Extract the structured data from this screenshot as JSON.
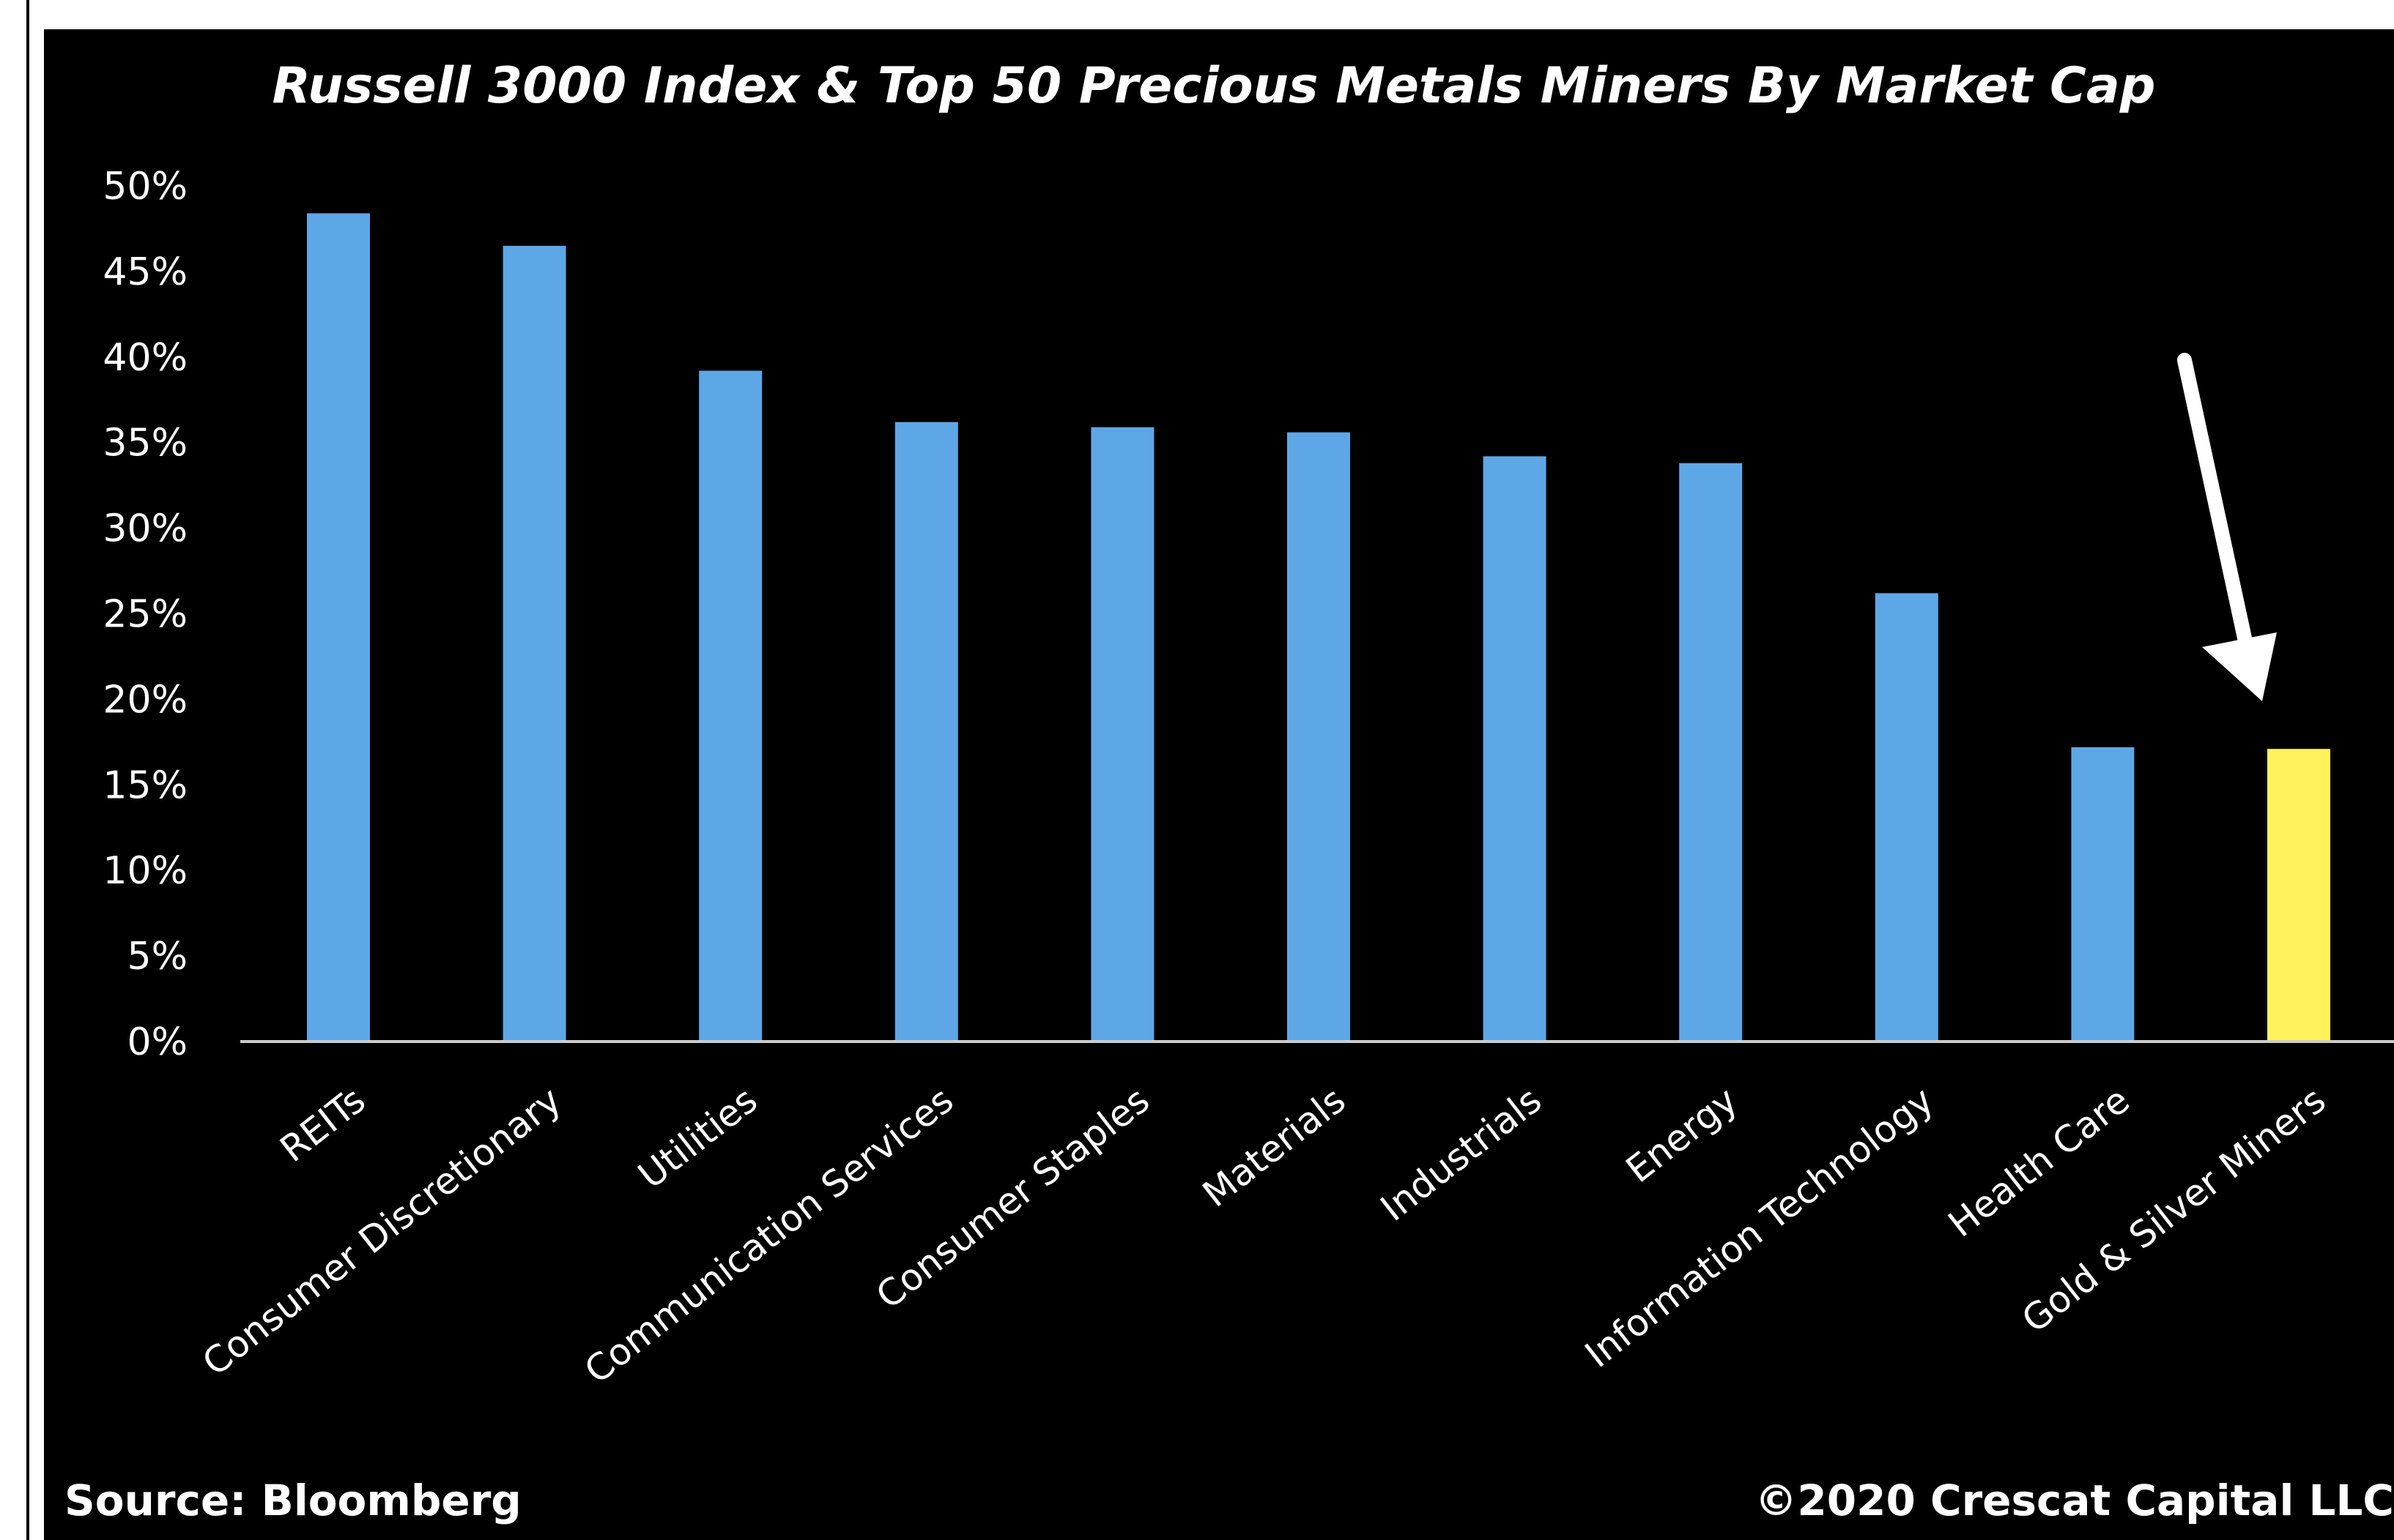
{
  "chart_data": {
    "type": "bar",
    "title": "Russell 3000 Index & Top 50 Precious Metals Miners By Market Cap",
    "categories": [
      "REITs",
      "Consumer Discretionary",
      "Utilities",
      "Communication Services",
      "Consumer Staples",
      "Materials",
      "Industrials",
      "Energy",
      "Information Technology",
      "Health Care",
      "Gold & Silver Miners"
    ],
    "values": [
      48.4,
      46.5,
      39.2,
      36.2,
      35.9,
      35.6,
      34.2,
      33.8,
      26.2,
      17.2,
      17.1
    ],
    "ylim": [
      0,
      50
    ],
    "yticks": [
      0,
      5,
      10,
      15,
      20,
      25,
      30,
      35,
      40,
      45,
      50
    ],
    "ytick_labels": [
      "0%",
      "5%",
      "10%",
      "15%",
      "20%",
      "25%",
      "30%",
      "35%",
      "40%",
      "45%",
      "50%"
    ],
    "xlabel": "",
    "ylabel": "",
    "grid": false,
    "colors": {
      "background": "#000000",
      "bar": "#5ea7e6",
      "highlight_bar": "#fff25c",
      "text": "#ffffff",
      "arrow": "#ffffff"
    },
    "highlight_category": "Gold & Silver Miners",
    "source": "Source: Bloomberg",
    "copyright": "©2020 Crescat Capital LLC"
  }
}
